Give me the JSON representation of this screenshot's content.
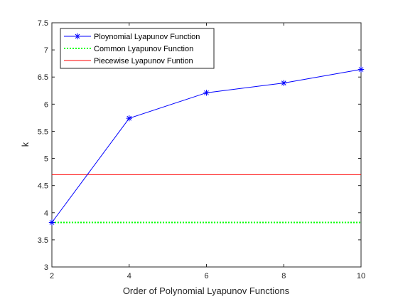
{
  "chart_data": {
    "type": "line",
    "title": "",
    "xlabel": "Order of Polynomial Lyapunov Functions",
    "ylabel": "k",
    "xlim": [
      2,
      10
    ],
    "ylim": [
      3,
      7.5
    ],
    "xticks": [
      2,
      4,
      6,
      8,
      10
    ],
    "yticks": [
      3,
      3.5,
      4,
      4.5,
      5,
      5.5,
      6,
      6.5,
      7,
      7.5
    ],
    "xtick_labels": [
      "2",
      "4",
      "6",
      "8",
      "10"
    ],
    "ytick_labels": [
      "3",
      "3.5",
      "4",
      "4.5",
      "5",
      "5.5",
      "6",
      "6.5",
      "7",
      "7.5"
    ],
    "grid": false,
    "legend_position": "top-left",
    "series": [
      {
        "name": "Ploynomial Lyapunov Function",
        "x": [
          2,
          4,
          6,
          8,
          10
        ],
        "y": [
          3.82,
          5.74,
          6.21,
          6.39,
          6.64
        ],
        "color": "#0000ff",
        "line_style": "solid",
        "marker": "asterisk"
      },
      {
        "name": "Common Lyapunov Function",
        "x": [
          2,
          10
        ],
        "y": [
          3.82,
          3.82
        ],
        "color": "#00ff00",
        "line_style": "dotted",
        "marker": "none"
      },
      {
        "name": "Piecewise Lyapunov Funtion",
        "x": [
          2,
          10
        ],
        "y": [
          4.7,
          4.7
        ],
        "color": "#ff0000",
        "line_style": "solid",
        "marker": "none"
      }
    ]
  }
}
